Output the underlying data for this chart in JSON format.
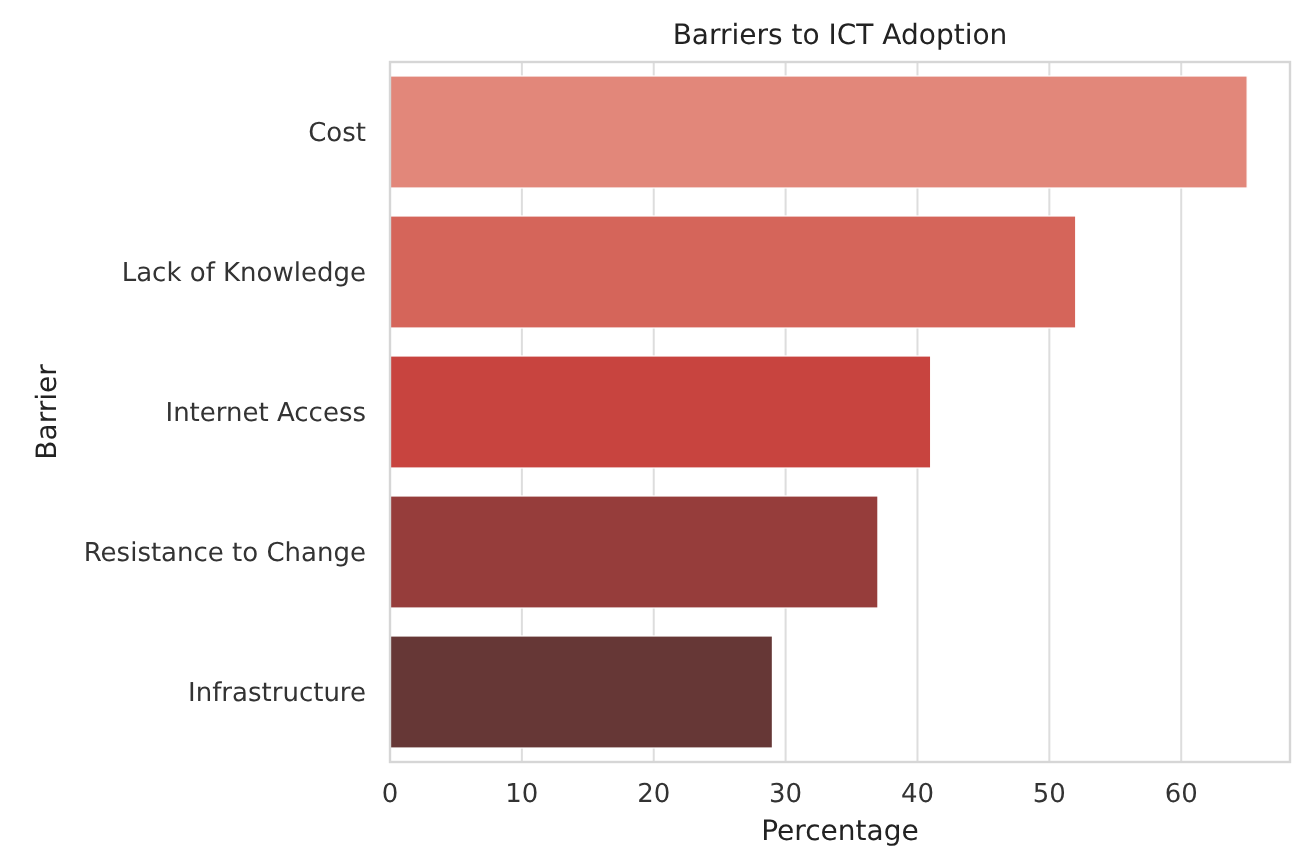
{
  "chart_data": {
    "type": "bar",
    "orientation": "horizontal",
    "title": "Barriers to ICT Adoption",
    "xlabel": "Percentage",
    "ylabel": "Barrier",
    "categories": [
      "Cost",
      "Lack of Knowledge",
      "Internet Access",
      "Resistance to Change",
      "Infrastructure"
    ],
    "values": [
      65,
      52,
      41,
      37,
      29
    ],
    "colors": [
      "#e2877a",
      "#d5655a",
      "#c8443f",
      "#963d3b",
      "#663736"
    ],
    "xlim": [
      0,
      68.25
    ],
    "xticks": [
      0,
      10,
      20,
      30,
      40,
      50,
      60
    ],
    "grid": "x"
  }
}
